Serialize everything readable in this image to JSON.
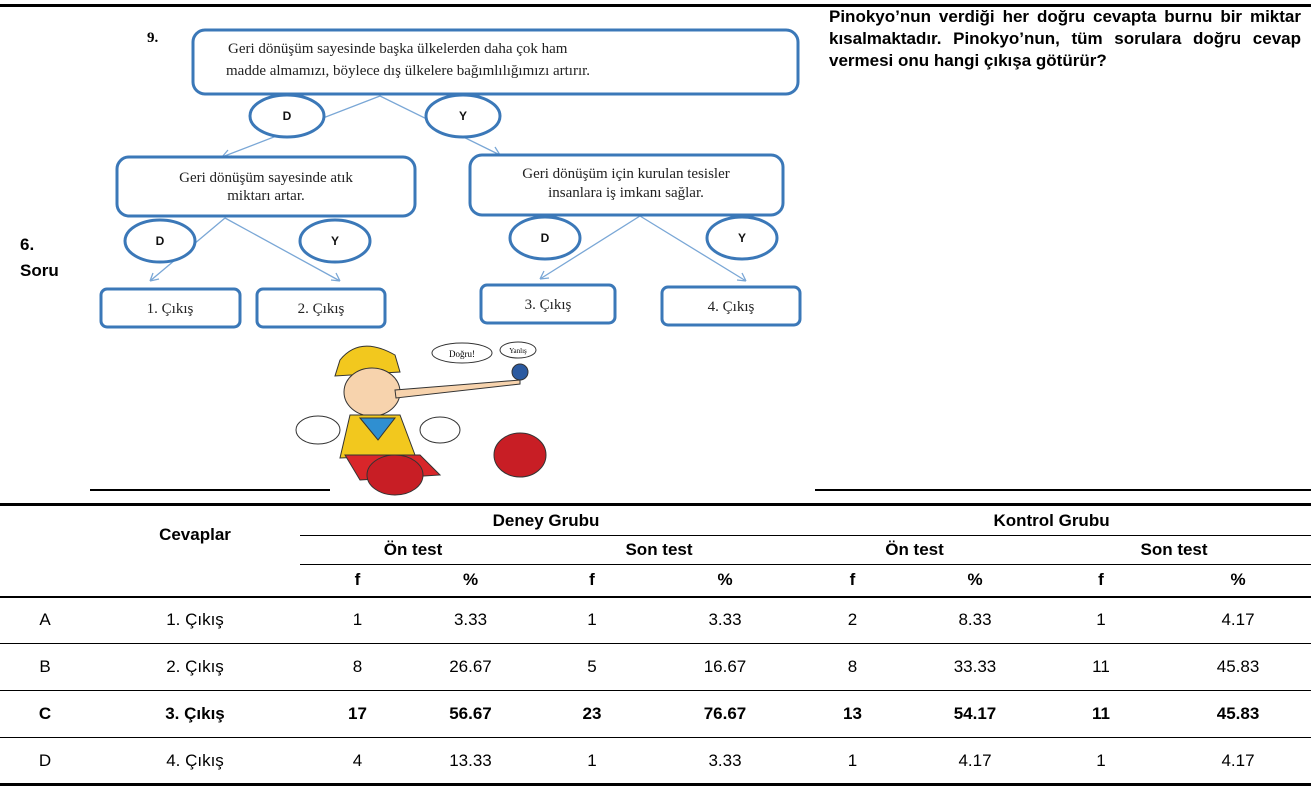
{
  "label": [
    "6.",
    "Soru"
  ],
  "question": "Pinokyo’nun verdiği her doğru cevapta burnu bir miktar kısalmaktadır. Pinokyo’nun, tüm sorulara doğru cevap vermesi onu hangi çıkışa götürür?",
  "diagram": {
    "number": "9.",
    "root": [
      "Geri dönüşüm sayesinde başka ülkelerden daha çok ham",
      "madde almamızı,  böylece dış ülkelere bağımlılığımızı  artırır."
    ],
    "branch_labels": [
      "D",
      "Y",
      "D",
      "Y",
      "D",
      "Y"
    ],
    "nodes": [
      [
        "Geri dönüşüm sayesinde atık",
        "miktarı artar."
      ],
      [
        "Geri dönüşüm için kurulan tesisler",
        "insanlara iş imkanı sağlar."
      ]
    ],
    "exits": [
      "1. Çıkış",
      "2. Çıkış",
      "3. Çıkış",
      "4. Çıkış"
    ],
    "bubbles": [
      "Doğru!",
      "Yanlış"
    ]
  },
  "table": {
    "header": {
      "cevaplar": "Cevaplar",
      "groups": [
        "Deney Grubu",
        "Kontrol Grubu"
      ],
      "tests": [
        "Ön test",
        "Son test",
        "Ön test",
        "Son test"
      ],
      "cols": [
        "f",
        "%",
        "f",
        "%",
        "f",
        "%",
        "f",
        "%"
      ]
    },
    "rows": [
      [
        "A",
        "1. Çıkış",
        1,
        3.33,
        1,
        3.33,
        2,
        8.33,
        1,
        4.17
      ],
      [
        "B",
        "2. Çıkış",
        8,
        26.67,
        5,
        16.67,
        8,
        33.33,
        11,
        45.83
      ],
      [
        "C",
        "3. Çıkış",
        17,
        56.67,
        23,
        76.67,
        13,
        54.17,
        11,
        45.83
      ],
      [
        "D",
        "4. Çıkış",
        4,
        13.33,
        1,
        3.33,
        1,
        4.17,
        1,
        4.17
      ]
    ]
  }
}
